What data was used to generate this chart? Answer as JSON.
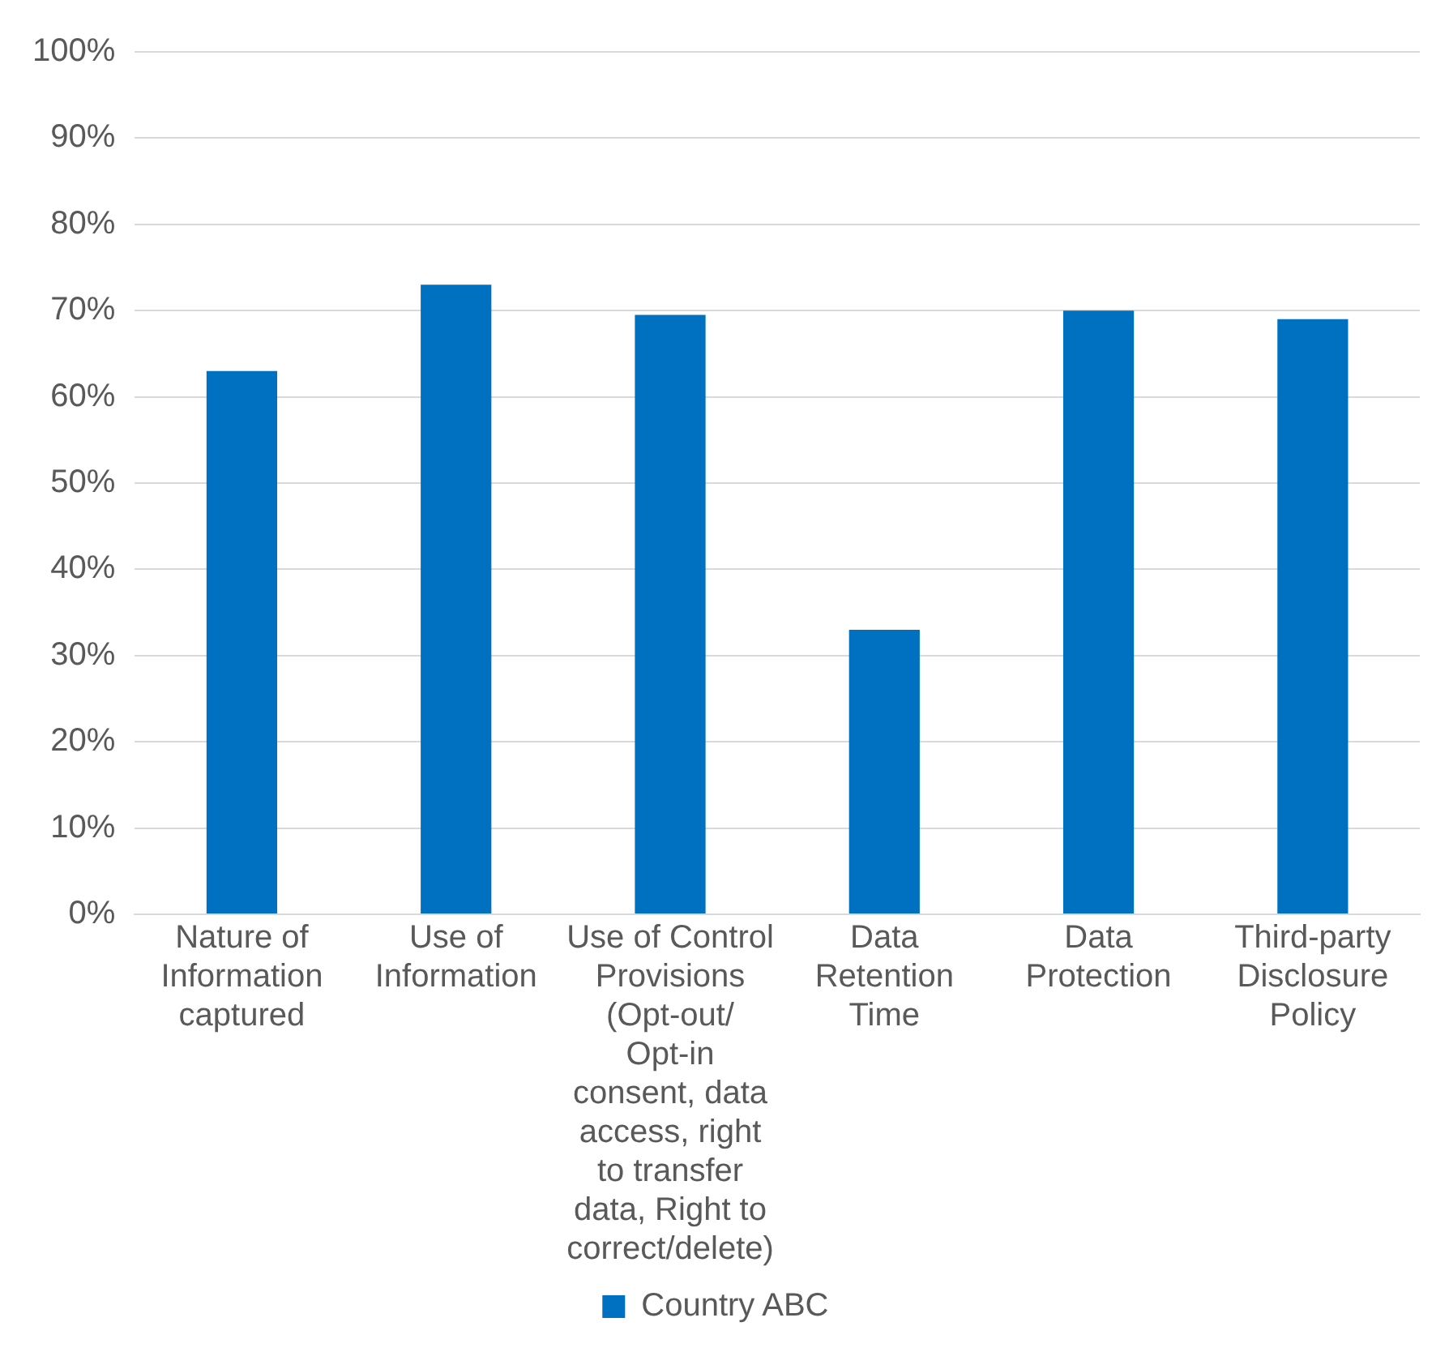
{
  "chart_data": {
    "type": "bar",
    "categories": [
      "Nature of Information captured",
      "Use of Information",
      "Use of Control Provisions (Opt-out/ Opt-in consent, data access, right to transfer data, Right to correct/delete)",
      "Data Retention Time",
      "Data Protection",
      "Third-party Disclosure Policy"
    ],
    "series": [
      {
        "name": "Country ABC",
        "color": "#0070c0",
        "values": [
          63,
          73,
          69.5,
          33,
          70,
          69
        ]
      }
    ],
    "ylim": [
      0,
      100
    ],
    "yticks": [
      {
        "value": 0,
        "label": "0%"
      },
      {
        "value": 10,
        "label": "10%"
      },
      {
        "value": 20,
        "label": "20%"
      },
      {
        "value": 30,
        "label": "30%"
      },
      {
        "value": 40,
        "label": "40%"
      },
      {
        "value": 50,
        "label": "50%"
      },
      {
        "value": 60,
        "label": "60%"
      },
      {
        "value": 70,
        "label": "70%"
      },
      {
        "value": 80,
        "label": "80%"
      },
      {
        "value": 90,
        "label": "90%"
      },
      {
        "value": 100,
        "label": "100%"
      }
    ],
    "grid": "y",
    "legend": "bottom"
  }
}
